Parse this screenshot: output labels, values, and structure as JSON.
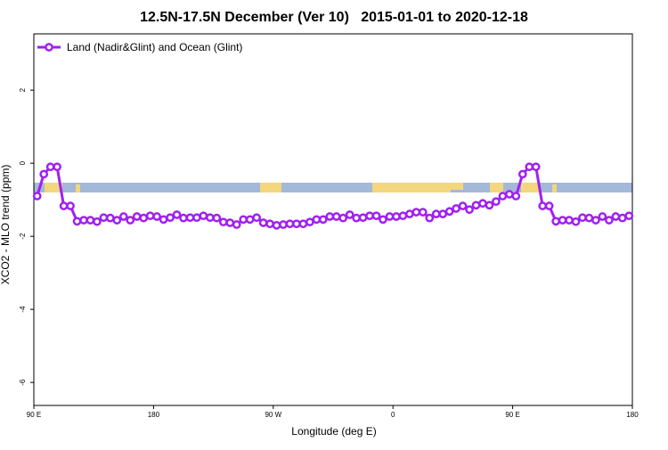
{
  "chart_data": {
    "type": "line",
    "title": "12.5N-17.5N December (Ver 10)   2015-01-01 to 2020-12-18",
    "xlabel": "Longitude (deg E)",
    "ylabel": "XCO2 - MLO trend (ppm)",
    "xlim": [
      90,
      540
    ],
    "ylim": [
      -6.63,
      3.54
    ],
    "xticks": [
      {
        "value": 90,
        "label": "90 E"
      },
      180,
      {
        "value": 270,
        "label": "90 W"
      },
      {
        "value": 360,
        "label": "0"
      },
      {
        "value": 450,
        "label": "90 E"
      },
      {
        "value": 540,
        "label": "180"
      }
    ],
    "yticks": [
      2,
      0,
      -2,
      -4,
      -6
    ],
    "legend": "top-left",
    "x": [
      92.5,
      97.5,
      102.5,
      107.5,
      112.5,
      117.5,
      122.5,
      127.5,
      132.5,
      137.5,
      142.5,
      147.5,
      152.5,
      157.5,
      162.5,
      167.5,
      172.5,
      177.5,
      182.5,
      187.5,
      192.5,
      197.5,
      202.5,
      207.5,
      212.5,
      217.5,
      222.5,
      227.5,
      232.5,
      237.5,
      242.5,
      247.5,
      252.5,
      257.5,
      262.5,
      267.5,
      272.5,
      277.5,
      282.5,
      287.5,
      292.5,
      297.5,
      302.5,
      307.5,
      312.5,
      317.5,
      322.5,
      327.5,
      332.5,
      337.5,
      342.5,
      347.5,
      352.5,
      357.5,
      362.5,
      367.5,
      372.5,
      377.5,
      382.5,
      387.5,
      392.5,
      397.5,
      402.5,
      407.5,
      412.5,
      417.5,
      422.5,
      427.5,
      432.5,
      437.5,
      442.5,
      447.5,
      452.5,
      457.5,
      462.5,
      467.5,
      472.5,
      477.5,
      482.5,
      487.5,
      492.5,
      497.5,
      502.5,
      507.5,
      512.5,
      517.5,
      522.5,
      527.5,
      532.5,
      537.5
    ],
    "series": [
      {
        "name": "Land (Nadir&Glint) and Ocean (Glint)",
        "color": "#a020f0",
        "values": [
          -0.9,
          -0.3,
          -0.1,
          -0.1,
          -1.17,
          -1.17,
          -1.59,
          -1.56,
          -1.56,
          -1.6,
          -1.49,
          -1.5,
          -1.56,
          -1.46,
          -1.56,
          -1.46,
          -1.5,
          -1.44,
          -1.46,
          -1.54,
          -1.49,
          -1.41,
          -1.5,
          -1.49,
          -1.49,
          -1.44,
          -1.49,
          -1.5,
          -1.61,
          -1.63,
          -1.68,
          -1.54,
          -1.54,
          -1.49,
          -1.63,
          -1.66,
          -1.7,
          -1.68,
          -1.66,
          -1.66,
          -1.66,
          -1.61,
          -1.54,
          -1.54,
          -1.46,
          -1.46,
          -1.5,
          -1.41,
          -1.5,
          -1.49,
          -1.44,
          -1.44,
          -1.54,
          -1.46,
          -1.46,
          -1.44,
          -1.39,
          -1.34,
          -1.34,
          -1.5,
          -1.39,
          -1.39,
          -1.32,
          -1.24,
          -1.17,
          -1.27,
          -1.15,
          -1.1,
          -1.15,
          -1.05,
          -0.9,
          -0.85,
          -0.9,
          -0.3,
          -0.1,
          -0.1,
          -1.17,
          -1.17,
          -1.59,
          -1.56,
          -1.56,
          -1.6,
          -1.49,
          -1.5,
          -1.56,
          -1.46,
          -1.56,
          -1.46,
          -1.5,
          -1.44
        ]
      }
    ]
  }
}
